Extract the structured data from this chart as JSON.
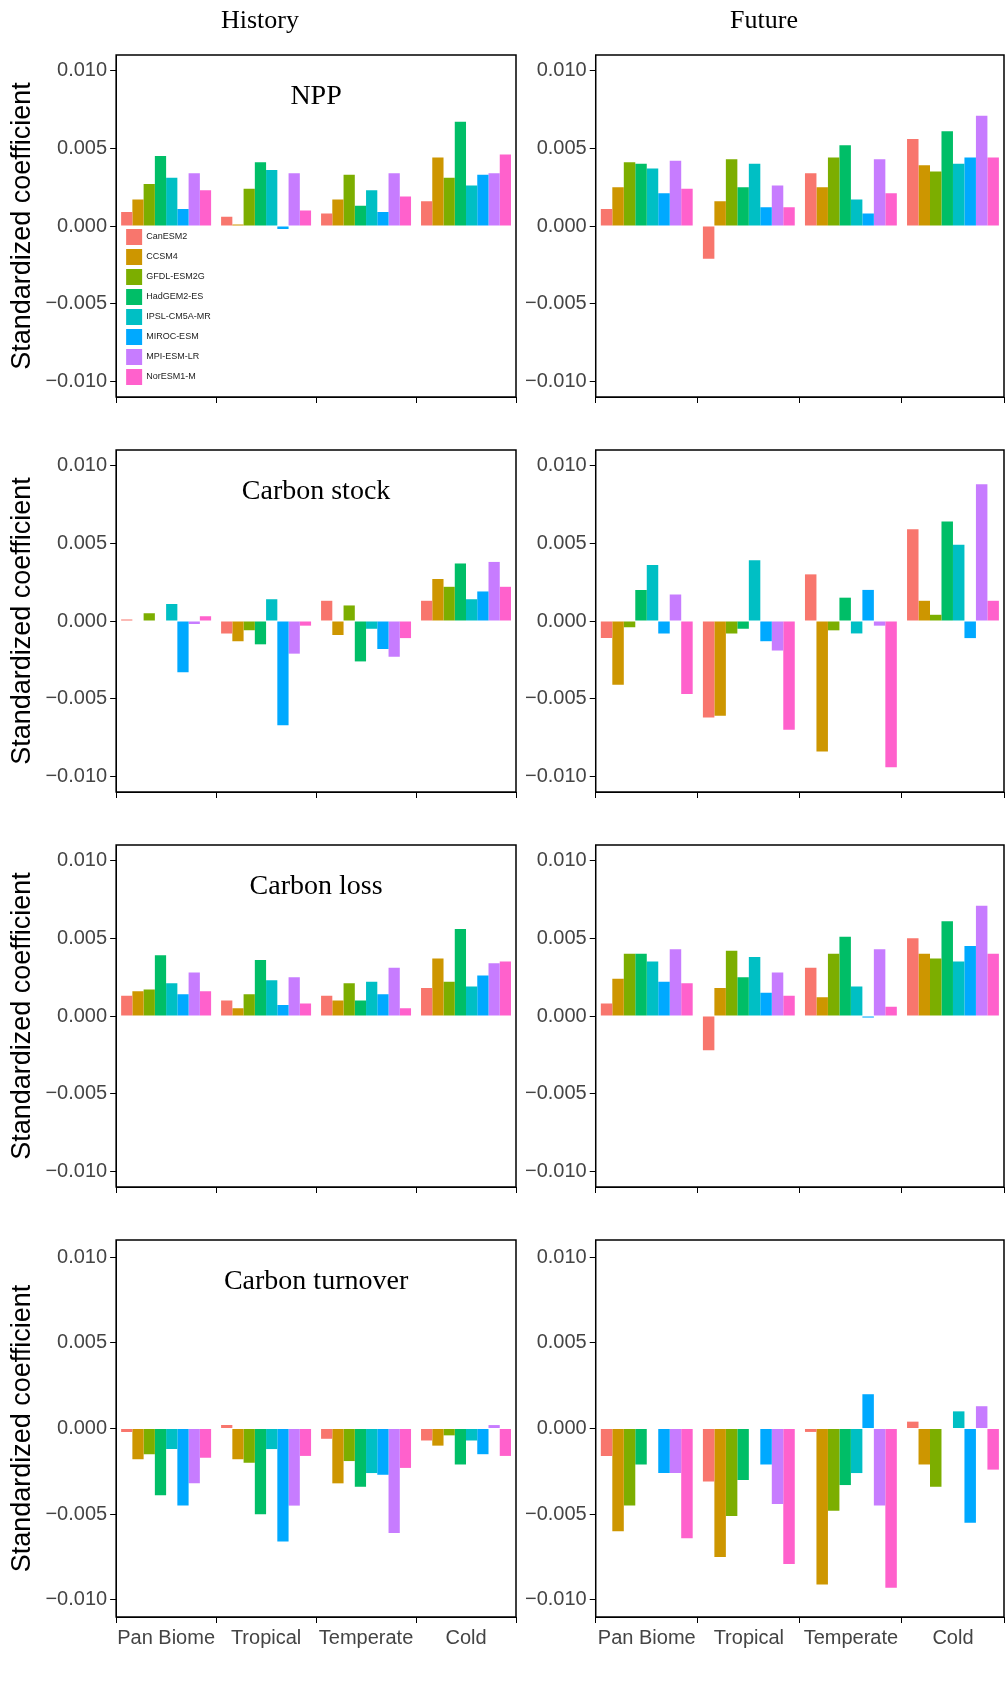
{
  "chart_data": [
    {
      "type": "bar",
      "subtitle": "History",
      "title": "NPP",
      "ylabel": "Standardized coefficient",
      "categories": [
        null,
        null,
        null,
        null
      ],
      "ylim": [
        -0.011,
        0.011
      ],
      "yticks": [
        {
          "value": -0.01,
          "label": "−0.010"
        },
        {
          "value": -0.005,
          "label": "−0.005"
        },
        {
          "value": 0,
          "label": "0.000"
        },
        {
          "value": 0.005,
          "label": "0.005"
        },
        {
          "value": 0.01,
          "label": "0.010"
        }
      ],
      "legend": "bottom left",
      "grid": false,
      "series": [
        {
          "name": "CanESM2",
          "color": "#f8766d",
          "values": [
            0.0009,
            0.0006,
            0.0008,
            0.0016
          ]
        },
        {
          "name": "CCSM4",
          "color": "#cd9600",
          "values": [
            0.0017,
            0.0001,
            0.0017,
            0.0044
          ]
        },
        {
          "name": "GFDL-ESM2G",
          "color": "#7cae00",
          "values": [
            0.0027,
            0.0024,
            0.0033,
            0.0031
          ]
        },
        {
          "name": "HadGEM2-ES",
          "color": "#00be67",
          "values": [
            0.0045,
            0.0041,
            0.0013,
            0.0067
          ]
        },
        {
          "name": "IPSL-CM5A-MR",
          "color": "#00bfc4",
          "values": [
            0.0031,
            0.0036,
            0.0023,
            0.0026
          ]
        },
        {
          "name": "MIROC-ESM",
          "color": "#00a9ff",
          "values": [
            0.0011,
            -0.0002,
            0.0009,
            0.0033
          ]
        },
        {
          "name": "MPI-ESM-LR",
          "color": "#c77cff",
          "values": [
            0.0034,
            0.0034,
            0.0034,
            0.0034
          ]
        },
        {
          "name": "NorESM1-M",
          "color": "#ff61cc",
          "values": [
            0.0023,
            0.001,
            0.0019,
            0.0046
          ]
        }
      ]
    },
    {
      "type": "bar",
      "subtitle": "Future",
      "categories": [
        null,
        null,
        null,
        null
      ],
      "ylim": [
        -0.011,
        0.011
      ],
      "yticks": [
        {
          "value": -0.01,
          "label": "−0.010"
        },
        {
          "value": -0.005,
          "label": "−0.005"
        },
        {
          "value": 0,
          "label": "0.000"
        },
        {
          "value": 0.005,
          "label": "0.005"
        },
        {
          "value": 0.01,
          "label": "0.010"
        }
      ],
      "grid": false,
      "series": [
        {
          "color": "#f8766d",
          "values": [
            0.0011,
            -0.0021,
            0.0034,
            0.0056
          ]
        },
        {
          "color": "#cd9600",
          "values": [
            0.0025,
            0.0016,
            0.0025,
            0.0039
          ]
        },
        {
          "color": "#7cae00",
          "values": [
            0.0041,
            0.0043,
            0.0044,
            0.0035
          ]
        },
        {
          "color": "#00be67",
          "values": [
            0.004,
            0.0025,
            0.0052,
            0.0061
          ]
        },
        {
          "color": "#00bfc4",
          "values": [
            0.0037,
            0.004,
            0.0017,
            0.004
          ]
        },
        {
          "color": "#00a9ff",
          "values": [
            0.0021,
            0.0012,
            0.0008,
            0.0044
          ]
        },
        {
          "color": "#c77cff",
          "values": [
            0.0042,
            0.0026,
            0.0043,
            0.0071
          ]
        },
        {
          "color": "#ff61cc",
          "values": [
            0.0024,
            0.0012,
            0.0021,
            0.0044
          ]
        }
      ]
    },
    {
      "type": "bar",
      "title": "Carbon stock",
      "ylabel": "Standardized coefficient",
      "categories": [
        null,
        null,
        null,
        null
      ],
      "ylim": [
        -0.011,
        0.011
      ],
      "yticks": [
        {
          "value": -0.01,
          "label": "−0.010"
        },
        {
          "value": -0.005,
          "label": "−0.005"
        },
        {
          "value": 0,
          "label": "0.000"
        },
        {
          "value": 0.005,
          "label": "0.005"
        },
        {
          "value": 0.01,
          "label": "0.010"
        }
      ],
      "grid": false,
      "series": [
        {
          "color": "#f8766d",
          "values": [
            0.0001,
            -0.0008,
            0.0013,
            0.0013
          ]
        },
        {
          "color": "#cd9600",
          "values": [
            0,
            -0.0013,
            -0.0009,
            0.0027
          ]
        },
        {
          "color": "#7cae00",
          "values": [
            0.0005,
            -0.0006,
            0.001,
            0.0022
          ]
        },
        {
          "color": "#00be67",
          "values": [
            0,
            -0.0015,
            -0.0026,
            0.0037
          ]
        },
        {
          "color": "#00bfc4",
          "values": [
            0.0011,
            0.0014,
            -0.0005,
            0.0014
          ]
        },
        {
          "color": "#00a9ff",
          "values": [
            -0.0033,
            -0.0067,
            -0.0018,
            0.0019
          ]
        },
        {
          "color": "#c77cff",
          "values": [
            -0.0002,
            -0.0021,
            -0.0023,
            0.0038
          ]
        },
        {
          "color": "#ff61cc",
          "values": [
            0.0003,
            -0.0003,
            -0.0011,
            0.0022
          ]
        }
      ]
    },
    {
      "type": "bar",
      "categories": [
        null,
        null,
        null,
        null
      ],
      "ylim": [
        -0.011,
        0.011
      ],
      "yticks": [
        {
          "value": -0.01,
          "label": "−0.010"
        },
        {
          "value": -0.005,
          "label": "−0.005"
        },
        {
          "value": 0,
          "label": "0.000"
        },
        {
          "value": 0.005,
          "label": "0.005"
        },
        {
          "value": 0.01,
          "label": "0.010"
        }
      ],
      "grid": false,
      "series": [
        {
          "color": "#f8766d",
          "values": [
            -0.0011,
            -0.0062,
            0.003,
            0.0059
          ]
        },
        {
          "color": "#cd9600",
          "values": [
            -0.0041,
            -0.0061,
            -0.0084,
            0.0013
          ]
        },
        {
          "color": "#7cae00",
          "values": [
            -0.0004,
            -0.0008,
            -0.0006,
            0.0004
          ]
        },
        {
          "color": "#00be67",
          "values": [
            0.002,
            -0.0005,
            0.0015,
            0.0064
          ]
        },
        {
          "color": "#00bfc4",
          "values": [
            0.0036,
            0.0039,
            -0.0008,
            0.0049
          ]
        },
        {
          "color": "#00a9ff",
          "values": [
            -0.0008,
            -0.0013,
            0.002,
            -0.0011
          ]
        },
        {
          "color": "#c77cff",
          "values": [
            0.0017,
            -0.0019,
            -0.0003,
            0.0088
          ]
        },
        {
          "color": "#ff61cc",
          "values": [
            -0.0047,
            -0.007,
            -0.0094,
            0.0013
          ]
        }
      ]
    },
    {
      "type": "bar",
      "title": "Carbon loss",
      "ylabel": "Standardized coefficient",
      "categories": [
        null,
        null,
        null,
        null
      ],
      "ylim": [
        -0.011,
        0.011
      ],
      "yticks": [
        {
          "value": -0.01,
          "label": "−0.010"
        },
        {
          "value": -0.005,
          "label": "−0.005"
        },
        {
          "value": 0,
          "label": "0.000"
        },
        {
          "value": 0.005,
          "label": "0.005"
        },
        {
          "value": 0.01,
          "label": "0.010"
        }
      ],
      "grid": false,
      "series": [
        {
          "color": "#f8766d",
          "values": [
            0.0013,
            0.001,
            0.0013,
            0.0018
          ]
        },
        {
          "color": "#cd9600",
          "values": [
            0.0016,
            0.0005,
            0.001,
            0.0037
          ]
        },
        {
          "color": "#7cae00",
          "values": [
            0.0017,
            0.0014,
            0.0021,
            0.0022
          ]
        },
        {
          "color": "#00be67",
          "values": [
            0.0039,
            0.0036,
            0.001,
            0.0056
          ]
        },
        {
          "color": "#00bfc4",
          "values": [
            0.0021,
            0.0023,
            0.0022,
            0.0019
          ]
        },
        {
          "color": "#00a9ff",
          "values": [
            0.0014,
            0.0007,
            0.0014,
            0.0026
          ]
        },
        {
          "color": "#c77cff",
          "values": [
            0.0028,
            0.0025,
            0.0031,
            0.0034
          ]
        },
        {
          "color": "#ff61cc",
          "values": [
            0.0016,
            0.0008,
            0.0005,
            0.0035
          ]
        }
      ]
    },
    {
      "type": "bar",
      "categories": [
        null,
        null,
        null,
        null
      ],
      "ylim": [
        -0.011,
        0.011
      ],
      "yticks": [
        {
          "value": -0.01,
          "label": "−0.010"
        },
        {
          "value": -0.005,
          "label": "−0.005"
        },
        {
          "value": 0,
          "label": "0.000"
        },
        {
          "value": 0.005,
          "label": "0.005"
        },
        {
          "value": 0.01,
          "label": "0.010"
        }
      ],
      "grid": false,
      "series": [
        {
          "color": "#f8766d",
          "values": [
            0.0008,
            -0.0022,
            0.0031,
            0.005
          ]
        },
        {
          "color": "#cd9600",
          "values": [
            0.0024,
            0.0018,
            0.0012,
            0.004
          ]
        },
        {
          "color": "#7cae00",
          "values": [
            0.004,
            0.0042,
            0.004,
            0.0037
          ]
        },
        {
          "color": "#00be67",
          "values": [
            0.004,
            0.0025,
            0.0051,
            0.0061
          ]
        },
        {
          "color": "#00bfc4",
          "values": [
            0.0035,
            0.0038,
            0.0019,
            0.0035
          ]
        },
        {
          "color": "#00a9ff",
          "values": [
            0.0022,
            0.0015,
            -0.0001,
            0.0045
          ]
        },
        {
          "color": "#c77cff",
          "values": [
            0.0043,
            0.0028,
            0.0043,
            0.0071
          ]
        },
        {
          "color": "#ff61cc",
          "values": [
            0.0021,
            0.0013,
            0.0006,
            0.004
          ]
        }
      ]
    },
    {
      "type": "bar",
      "title": "Carbon turnover",
      "ylabel": "Standardized coefficient",
      "categories": [
        "Pan Biome",
        "Tropical",
        "Temperate",
        "Cold"
      ],
      "ylim": [
        -0.011,
        0.011
      ],
      "yticks": [
        {
          "value": -0.01,
          "label": "−0.010"
        },
        {
          "value": -0.005,
          "label": "−0.005"
        },
        {
          "value": 0,
          "label": "0.000"
        },
        {
          "value": 0.005,
          "label": "0.005"
        },
        {
          "value": 0.01,
          "label": "0.010"
        }
      ],
      "grid": false,
      "series": [
        {
          "color": "#f8766d",
          "values": [
            -0.0002,
            0.0002,
            -0.0006,
            -0.0007
          ]
        },
        {
          "color": "#cd9600",
          "values": [
            -0.0018,
            -0.0018,
            -0.0032,
            -0.001
          ]
        },
        {
          "color": "#7cae00",
          "values": [
            -0.0015,
            -0.002,
            -0.0019,
            -0.0004
          ]
        },
        {
          "color": "#00be67",
          "values": [
            -0.0039,
            -0.005,
            -0.0034,
            -0.0021
          ]
        },
        {
          "color": "#00bfc4",
          "values": [
            -0.0012,
            -0.0012,
            -0.0026,
            -0.0007
          ]
        },
        {
          "color": "#00a9ff",
          "values": [
            -0.0045,
            -0.0066,
            -0.0027,
            -0.0015
          ]
        },
        {
          "color": "#c77cff",
          "values": [
            -0.0032,
            -0.0045,
            -0.0061,
            0.0002
          ]
        },
        {
          "color": "#ff61cc",
          "values": [
            -0.0017,
            -0.0016,
            -0.0023,
            -0.0016
          ]
        }
      ]
    },
    {
      "type": "bar",
      "categories": [
        "Pan Biome",
        "Tropical",
        "Temperate",
        "Cold"
      ],
      "ylim": [
        -0.011,
        0.011
      ],
      "yticks": [
        {
          "value": -0.01,
          "label": "−0.010"
        },
        {
          "value": -0.005,
          "label": "−0.005"
        },
        {
          "value": 0,
          "label": "0.000"
        },
        {
          "value": 0.005,
          "label": "0.005"
        },
        {
          "value": 0.01,
          "label": "0.010"
        }
      ],
      "grid": false,
      "series": [
        {
          "color": "#f8766d",
          "values": [
            -0.0016,
            -0.0031,
            -0.0002,
            0.0004
          ]
        },
        {
          "color": "#cd9600",
          "values": [
            -0.006,
            -0.0075,
            -0.0091,
            -0.0021
          ]
        },
        {
          "color": "#7cae00",
          "values": [
            -0.0045,
            -0.0051,
            -0.0048,
            -0.0034
          ]
        },
        {
          "color": "#00be67",
          "values": [
            -0.0021,
            -0.003,
            -0.0033,
            0
          ]
        },
        {
          "color": "#00bfc4",
          "values": [
            0,
            0,
            -0.0026,
            0.001
          ]
        },
        {
          "color": "#00a9ff",
          "values": [
            -0.0026,
            -0.0021,
            0.002,
            -0.0055
          ]
        },
        {
          "color": "#c77cff",
          "values": [
            -0.0026,
            -0.0044,
            -0.0045,
            0.0013
          ]
        },
        {
          "color": "#ff61cc",
          "values": [
            -0.0064,
            -0.0079,
            -0.0093,
            -0.0024
          ]
        }
      ]
    }
  ]
}
